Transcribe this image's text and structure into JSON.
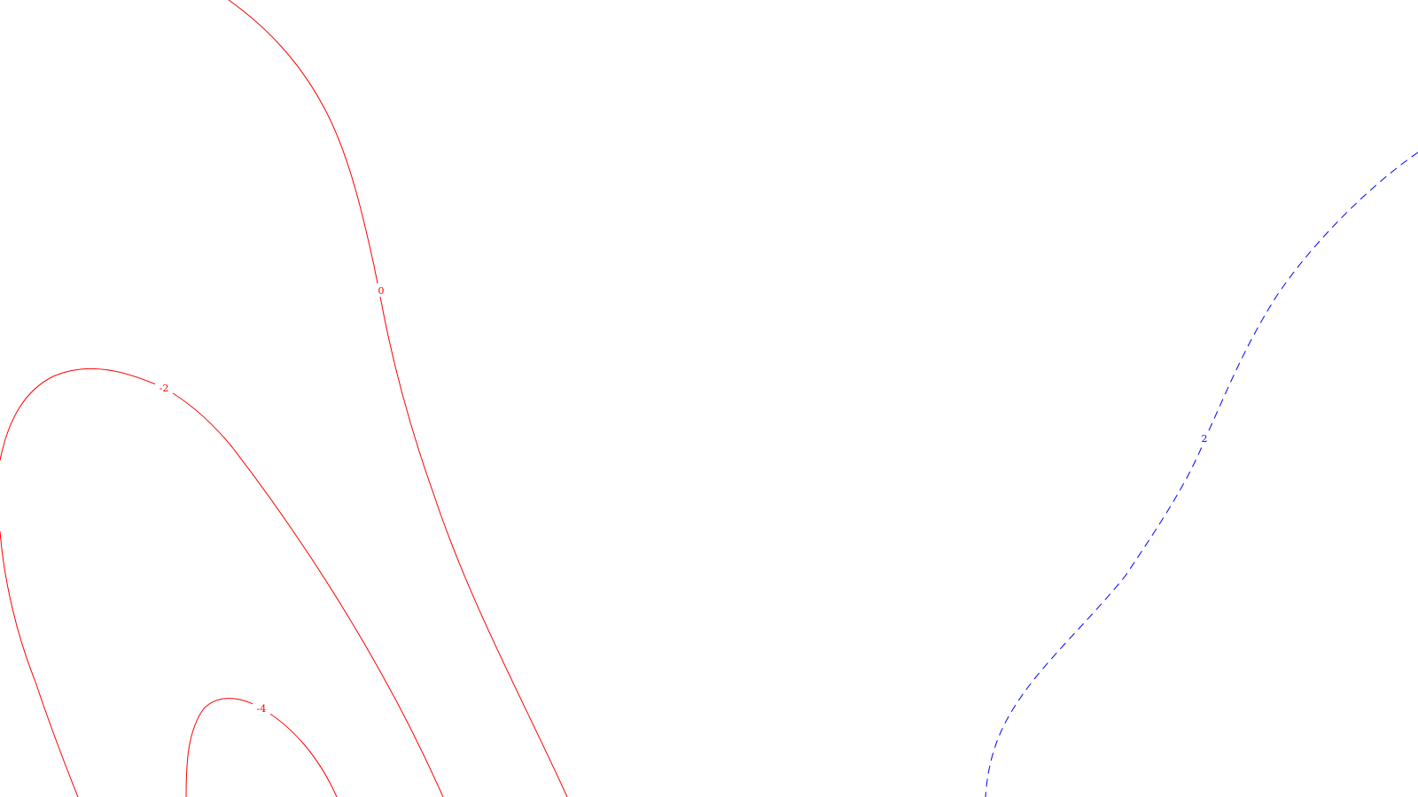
{
  "chart_data": {
    "type": "contour",
    "title": "",
    "xlabel": "",
    "ylabel": "",
    "grid": false,
    "legend": "none",
    "colors": {
      "negative": "#ff0000",
      "zero": "#ff0000",
      "positive": "#0000ff",
      "background": "#ffffff"
    },
    "levels": [
      {
        "value": -4,
        "label": "-4",
        "line_style": "solid",
        "color": "#ff0000"
      },
      {
        "value": -2,
        "label": "-2",
        "line_style": "solid",
        "color": "#ff0000"
      },
      {
        "value": 0,
        "label": "0",
        "line_style": "solid",
        "color": "#ff0000"
      },
      {
        "value": 2,
        "label": "2",
        "line_style": "dashed",
        "color": "#0000ff"
      }
    ]
  }
}
